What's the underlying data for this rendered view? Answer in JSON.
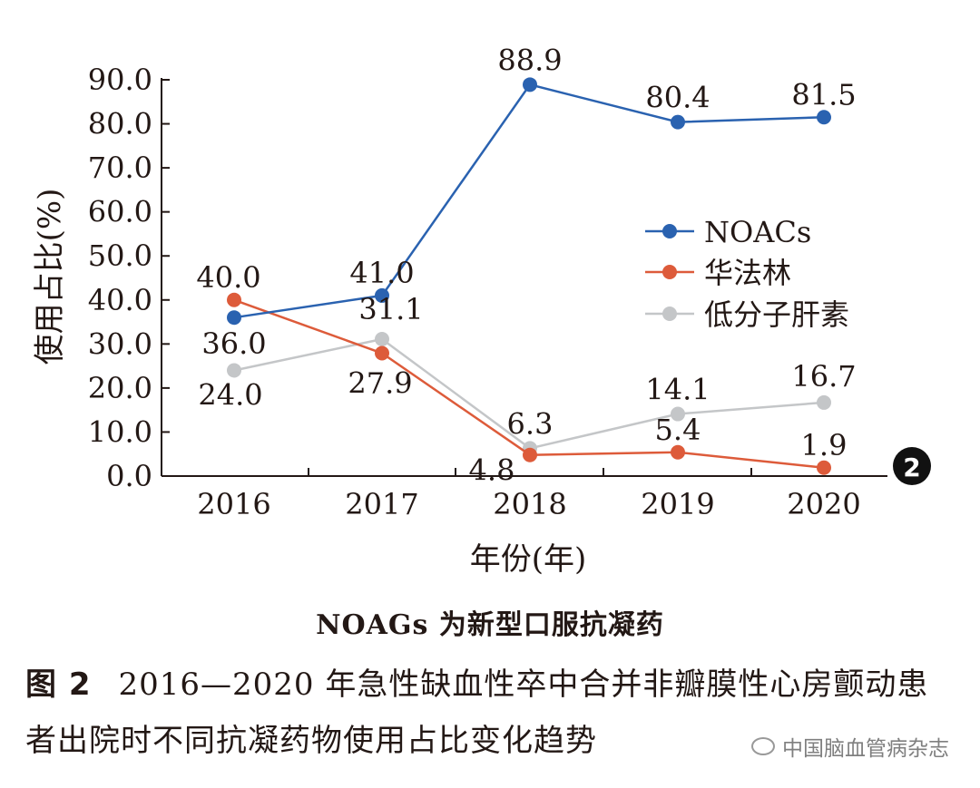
{
  "chart_data": {
    "type": "line",
    "categories": [
      "2016",
      "2017",
      "2018",
      "2019",
      "2020"
    ],
    "series": [
      {
        "name": "NOACs",
        "values": [
          36.0,
          41.0,
          88.9,
          80.4,
          81.5
        ],
        "color": "#2a62b0"
      },
      {
        "name": "华法林",
        "values": [
          40.0,
          27.9,
          4.8,
          5.4,
          1.9
        ],
        "color": "#dd5b3a"
      },
      {
        "name": "低分子肝素",
        "values": [
          24.0,
          31.1,
          6.3,
          14.1,
          16.7
        ],
        "color": "#c4c6c8"
      }
    ],
    "data_labels": [
      [
        "36.0",
        "41.0",
        "88.9",
        "80.4",
        "81.5"
      ],
      [
        "40.0",
        "27.9",
        "4.8",
        "5.4",
        "1.9"
      ],
      [
        "24.0",
        "31.1",
        "6.3",
        "14.1",
        "16.7"
      ]
    ],
    "ylabel": "使用占比(%)",
    "xlabel": "年份(年)",
    "ylim": [
      0,
      90
    ],
    "yticks": [
      "0.0",
      "10.0",
      "20.0",
      "30.0",
      "40.0",
      "50.0",
      "60.0",
      "70.0",
      "80.0",
      "90.0"
    ],
    "legend_position": "right-middle",
    "grid": false,
    "panel_badge": "2"
  },
  "note": "NOAGs 为新型口服抗凝药",
  "caption": {
    "figure": "图 2",
    "text": "2016—2020 年急性缺血性卒中合并非瓣膜性心房颤动患者出院时不同抗凝药物使用占比变化趋势"
  },
  "watermark": "中国脑血管病杂志"
}
